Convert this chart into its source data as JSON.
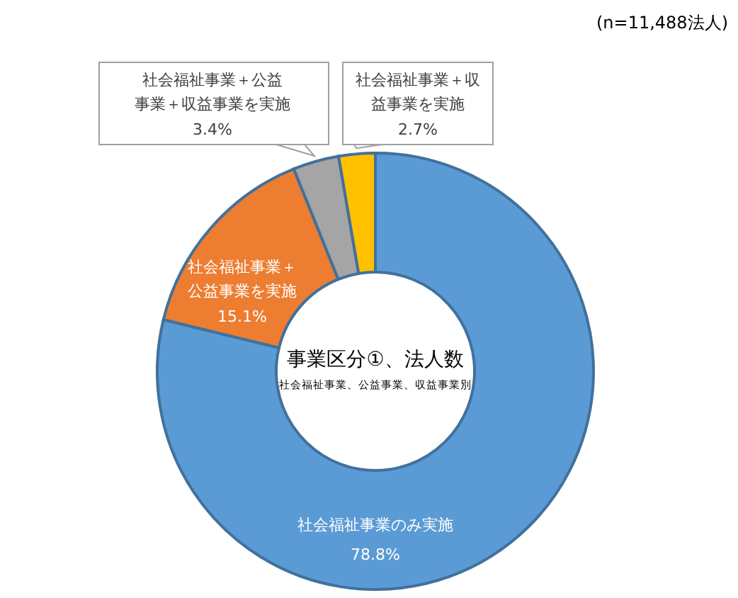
{
  "chart_data": {
    "type": "donut",
    "title": "事業区分①、法人数",
    "subtitle": "社会福祉事業、公益事業、収益事業別",
    "annotations": [
      "(n=11,488法人)"
    ],
    "categories": [
      "社会福祉事業のみ実施",
      "社会福祉事業＋公益事業を実施",
      "社会福祉事業＋公益事業＋収益事業を実施",
      "社会福祉事業＋収益事業を実施"
    ],
    "values": [
      78.8,
      15.1,
      3.4,
      2.7
    ],
    "value_labels": [
      "78.8%",
      "15.1%",
      "3.4%",
      "2.7%"
    ],
    "colors": [
      "#5b9bd5",
      "#ed7d31",
      "#a5a5a5",
      "#ffc000"
    ],
    "legend": false
  }
}
